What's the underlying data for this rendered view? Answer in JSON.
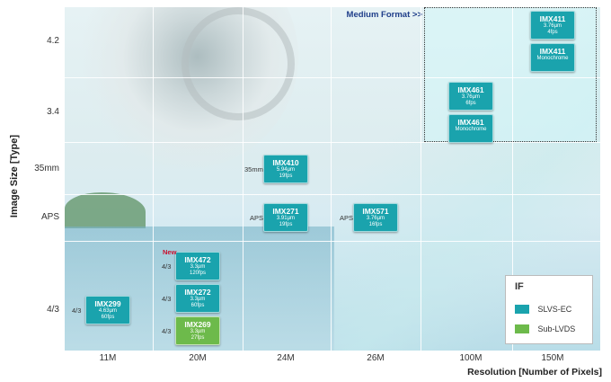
{
  "chart_data": {
    "type": "scatter",
    "xlabel": "Resolution  [Number of Pixels]",
    "ylabel": "Image Size [Type]",
    "categories": [
      "11M",
      "20M",
      "24M",
      "26M",
      "100M",
      "150M"
    ],
    "y_categories": [
      "4/3",
      "APS",
      "35mm",
      "3.4",
      "4.2"
    ],
    "medium_format_label": "Medium Format >>",
    "new_label": "New",
    "colors": {
      "slvs": "#1aa3ad",
      "sublvds": "#6dba4b"
    },
    "legend": {
      "title": "IF",
      "items": [
        {
          "label": "SLVS-EC",
          "color": "#1aa3ad"
        },
        {
          "label": "Sub-LVDS",
          "color": "#6dba4b"
        }
      ],
      "placement": "bottom-right"
    },
    "sensors": [
      {
        "name": "IMX299",
        "lines": [
          "4.63µm",
          "60fps"
        ],
        "interface": "slvs",
        "tag": "4/3",
        "x": "11M",
        "y": "4/3"
      },
      {
        "name": "IMX472",
        "lines": [
          "3.3µm",
          "120fps"
        ],
        "interface": "slvs",
        "tag": "4/3",
        "x": "20M",
        "y": "4/3"
      },
      {
        "name": "IMX272",
        "lines": [
          "3.3µm",
          "60fps"
        ],
        "interface": "slvs",
        "tag": "4/3",
        "x": "20M",
        "y": "4/3"
      },
      {
        "name": "IMX269",
        "lines": [
          "3.3µm",
          "27fps"
        ],
        "interface": "sublvds",
        "tag": "4/3",
        "x": "20M",
        "y": "4/3"
      },
      {
        "name": "IMX271",
        "lines": [
          "3.91µm",
          "19fps"
        ],
        "interface": "slvs",
        "tag": "APS",
        "x": "24M",
        "y": "APS"
      },
      {
        "name": "IMX410",
        "lines": [
          "5.94µm",
          "19fps"
        ],
        "interface": "slvs",
        "tag": "35mm",
        "x": "24M",
        "y": "35mm"
      },
      {
        "name": "IMX571",
        "lines": [
          "3.76µm",
          "16fps"
        ],
        "interface": "slvs",
        "tag": "APS",
        "x": "26M",
        "y": "APS"
      },
      {
        "name": "IMX461",
        "lines": [
          "3.76µm",
          "6fps"
        ],
        "interface": "slvs",
        "tag": "",
        "x": "100M",
        "y": "3.4"
      },
      {
        "name": "IMX461",
        "lines": [
          "Monochrome"
        ],
        "interface": "slvs",
        "tag": "",
        "x": "100M",
        "y": "3.4"
      },
      {
        "name": "IMX411",
        "lines": [
          "3.76µm",
          "4fps"
        ],
        "interface": "slvs",
        "tag": "",
        "x": "150M",
        "y": "4.2"
      },
      {
        "name": "IMX411",
        "lines": [
          "Monochrome"
        ],
        "interface": "slvs",
        "tag": "",
        "x": "150M",
        "y": "4.2"
      }
    ]
  }
}
